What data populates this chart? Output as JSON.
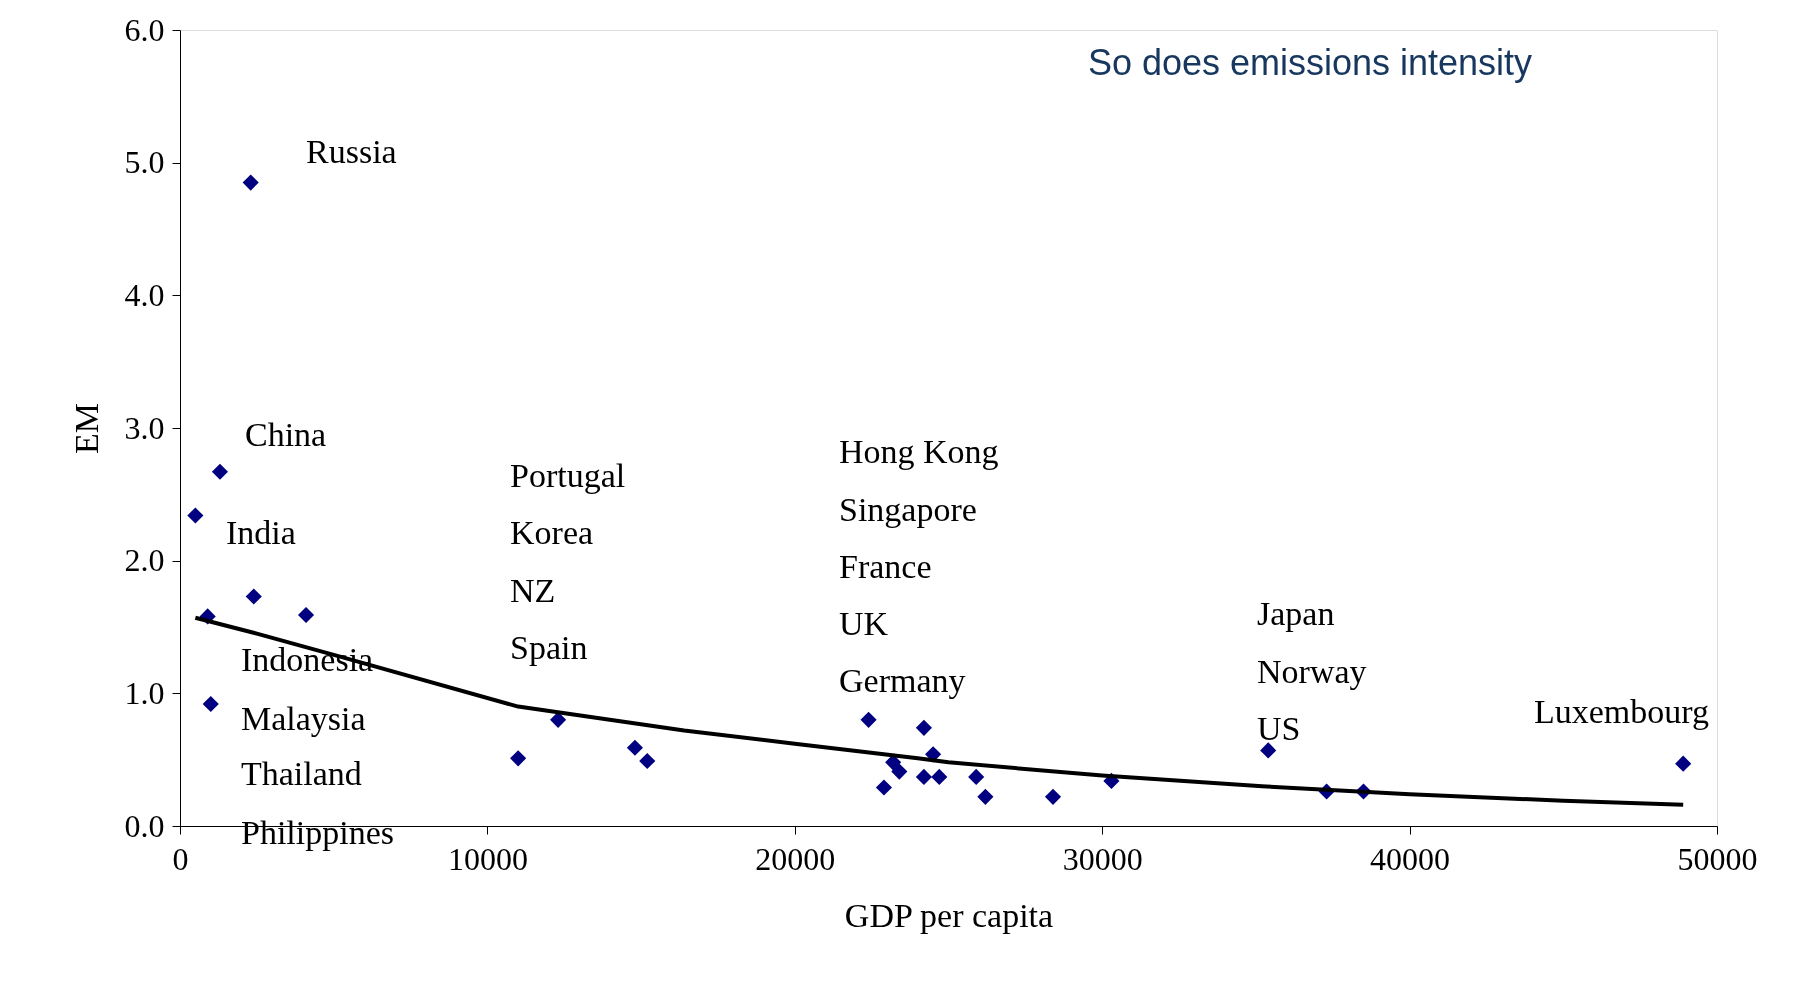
{
  "chart_data": {
    "type": "scatter",
    "title": "So does emissions intensity",
    "xlabel": "GDP per capita",
    "ylabel": "EM",
    "xlim": [
      0,
      50000
    ],
    "xticks": [
      0,
      10000,
      20000,
      30000,
      40000,
      50000
    ],
    "ylim": [
      0,
      6
    ],
    "yticks": [
      {
        "value": 0,
        "label": "0.0"
      },
      {
        "value": 1,
        "label": "1.0"
      },
      {
        "value": 2,
        "label": "2.0"
      },
      {
        "value": 3,
        "label": "3.0"
      },
      {
        "value": 4,
        "label": "4.0"
      },
      {
        "value": 5,
        "label": "5.0"
      },
      {
        "value": 6,
        "label": "6.0"
      }
    ],
    "grid": false,
    "series": [
      {
        "color": "#000080",
        "marker": "diamond",
        "x": [
          2300,
          1300,
          500,
          900,
          2400,
          4100,
          1000,
          11000,
          12300,
          14800,
          15200,
          22400,
          22900,
          23200,
          23400,
          24200,
          24200,
          24500,
          24700,
          25900,
          26200,
          28400,
          30300,
          35400,
          37300,
          38500,
          48900
        ],
        "values": [
          4.85,
          2.67,
          2.34,
          1.58,
          1.73,
          1.59,
          0.92,
          0.51,
          0.8,
          0.59,
          0.49,
          0.8,
          0.29,
          0.48,
          0.41,
          0.74,
          0.37,
          0.54,
          0.37,
          0.37,
          0.22,
          0.22,
          0.34,
          0.57,
          0.26,
          0.26,
          0.47
        ]
      },
      {
        "type": "line",
        "color": "#000000",
        "line_style": "solid",
        "x": [
          500,
          2500,
          5150,
          11000,
          16400,
          20000,
          24000,
          25000,
          30000,
          35200,
          40000,
          45000,
          48900
        ],
        "values": [
          1.57,
          1.45,
          1.28,
          0.9,
          0.72,
          0.62,
          0.51,
          0.48,
          0.38,
          0.3,
          0.24,
          0.19,
          0.16
        ]
      }
    ],
    "annotations": [
      "Russia",
      "China",
      "India",
      "Indonesia",
      "Malaysia",
      "Thailand",
      "Philippines",
      "Portugal",
      "Korea",
      "NZ",
      "Spain",
      "Hong Kong",
      "Singapore",
      "France",
      "UK",
      "Germany",
      "Japan",
      "Norway",
      "US",
      "Luxembourg"
    ]
  }
}
